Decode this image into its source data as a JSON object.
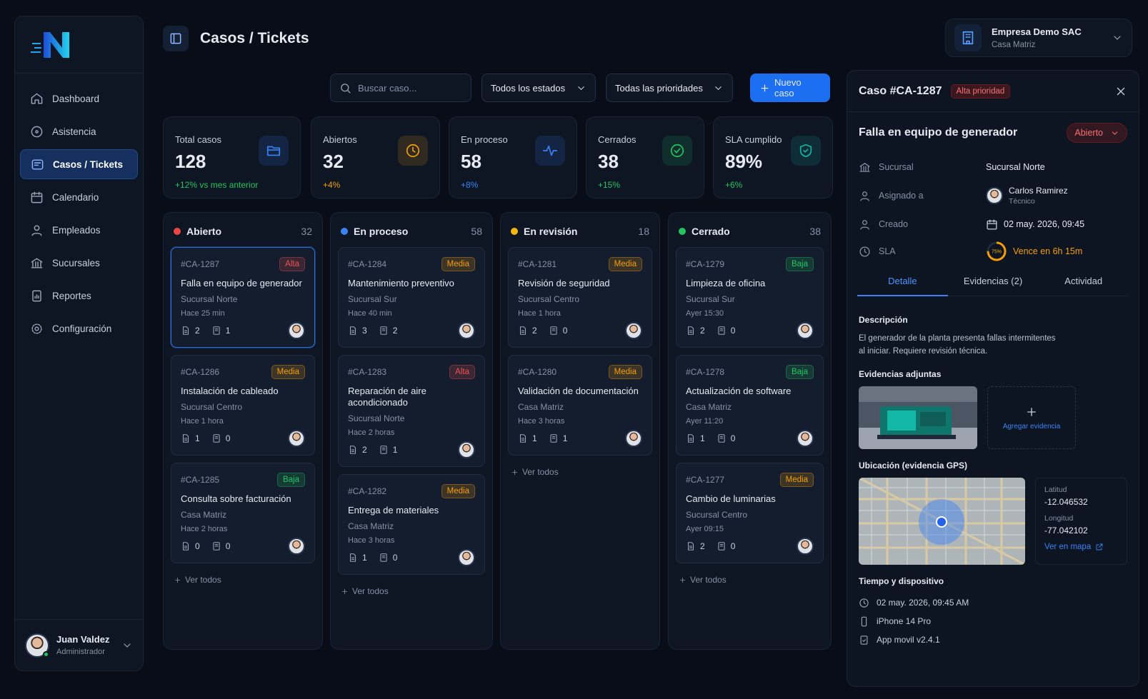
{
  "sidebar": {
    "nav": [
      {
        "label": "Dashboard"
      },
      {
        "label": "Asistencia"
      },
      {
        "label": "Casos / Tickets",
        "active": true
      },
      {
        "label": "Calendario"
      },
      {
        "label": "Empleados"
      },
      {
        "label": "Sucursales"
      },
      {
        "label": "Reportes"
      },
      {
        "label": "Configuración"
      }
    ],
    "user": {
      "name": "Juan Valdez",
      "role": "Administrador"
    }
  },
  "header": {
    "title": "Casos / Tickets",
    "company": "Empresa Demo SAC",
    "branch": "Casa Matriz"
  },
  "toolbar": {
    "search": "Buscar caso...",
    "status": "Todos los estados",
    "priority": "Todas las prioridades",
    "new": "Nuevo caso"
  },
  "stats": [
    {
      "label": "Total casos",
      "value": "128",
      "delta": "+12% vs mes anterior",
      "color": "#3b82f6",
      "delta_color": "#22c55e"
    },
    {
      "label": "Abiertos",
      "value": "32",
      "delta": "+4%",
      "color": "#f59e0b",
      "delta_color": "#f59e0b"
    },
    {
      "label": "En proceso",
      "value": "58",
      "delta": "+8%",
      "color": "#3b82f6",
      "delta_color": "#3b82f6"
    },
    {
      "label": "Cerrados",
      "value": "38",
      "delta": "+15%",
      "color": "#22c55e",
      "delta_color": "#22c55e"
    },
    {
      "label": "SLA cumplido",
      "value": "89%",
      "delta": "+6%",
      "color": "#14b8a6",
      "delta_color": "#22c55e"
    }
  ],
  "priority_colors": {
    "Alta": "#f05252",
    "Media": "#f59e0b",
    "Baja": "#22c55e"
  },
  "columns": [
    {
      "name": "Abierto",
      "count": "32",
      "color": "#ef4444",
      "more": "Ver todos",
      "cards": [
        {
          "id": "#CA-1287",
          "priority": "Alta",
          "title": "Falla en equipo de generador",
          "branch": "Sucursal Norte",
          "time": "Hace 25 min",
          "files": "2",
          "notes": "1",
          "selected": true
        },
        {
          "id": "#CA-1286",
          "priority": "Media",
          "title": "Instalación de cableado",
          "branch": "Sucursal Centro",
          "time": "Hace 1 hora",
          "files": "1",
          "notes": "0"
        },
        {
          "id": "#CA-1285",
          "priority": "Baja",
          "title": "Consulta sobre facturación",
          "branch": "Casa Matriz",
          "time": "Hace 2 horas",
          "files": "0",
          "notes": "0"
        }
      ]
    },
    {
      "name": "En proceso",
      "count": "58",
      "color": "#3b82f6",
      "more": "Ver todos",
      "cards": [
        {
          "id": "#CA-1284",
          "priority": "Media",
          "title": "Mantenimiento preventivo",
          "branch": "Sucursal Sur",
          "time": "Hace 40 min",
          "files": "3",
          "notes": "2"
        },
        {
          "id": "#CA-1283",
          "priority": "Alta",
          "title": "Reparación de aire acondicionado",
          "branch": "Sucursal Norte",
          "time": "Hace 2 horas",
          "files": "2",
          "notes": "1"
        },
        {
          "id": "#CA-1282",
          "priority": "Media",
          "title": "Entrega de materiales",
          "branch": "Casa Matriz",
          "time": "Hace 3 horas",
          "files": "1",
          "notes": "0"
        }
      ]
    },
    {
      "name": "En revisión",
      "count": "18",
      "color": "#f5b70b",
      "more": "Ver todos",
      "cards": [
        {
          "id": "#CA-1281",
          "priority": "Media",
          "title": "Revisión de seguridad",
          "branch": "Sucursal Centro",
          "time": "Hace 1 hora",
          "files": "2",
          "notes": "0"
        },
        {
          "id": "#CA-1280",
          "priority": "Media",
          "title": "Validación de documentación",
          "branch": "Casa Matriz",
          "time": "Hace 3 horas",
          "files": "1",
          "notes": "1"
        }
      ]
    },
    {
      "name": "Cerrado",
      "count": "38",
      "color": "#22c55e",
      "more": "Ver todos",
      "cards": [
        {
          "id": "#CA-1279",
          "priority": "Baja",
          "title": "Limpieza de oficina",
          "branch": "Sucursal Sur",
          "time": "Ayer 15:30",
          "files": "2",
          "notes": "0"
        },
        {
          "id": "#CA-1278",
          "priority": "Baja",
          "title": "Actualización de software",
          "branch": "Casa Matriz",
          "time": "Ayer 11:20",
          "files": "1",
          "notes": "0"
        },
        {
          "id": "#CA-1277",
          "priority": "Media",
          "title": "Cambio de luminarias",
          "branch": "Sucursal Centro",
          "time": "Ayer 09:15",
          "files": "2",
          "notes": "0"
        }
      ]
    }
  ],
  "detail": {
    "case": "Caso #CA-1287",
    "priority": "Alta prioridad",
    "title": "Falla en equipo de generador",
    "status": "Abierto",
    "fields": [
      {
        "label": "Sucursal",
        "value": "Sucursal Norte"
      },
      {
        "label": "Asignado a",
        "value": "Carlos Ramirez",
        "sub": "Técnico"
      },
      {
        "label": "Creado",
        "value": "02 may. 2026, 09:45"
      },
      {
        "label": "SLA",
        "value": "Vence en 6h 15m",
        "ring": {
          "value": 75,
          "label": "75%"
        }
      }
    ],
    "tabs": [
      {
        "label": "Detalle",
        "active": true
      },
      {
        "label": "Evidencias (2)"
      },
      {
        "label": "Actividad"
      }
    ],
    "description_title": "Descripción",
    "description": "El generador de la planta presenta fallas intermitentes al iniciar. Requiere revisión técnica.",
    "evidence_title": "Evidencias adjuntas",
    "add_evidence": "Agregar evidencia",
    "location_title": "Ubicación (evidencia GPS)",
    "lat_label": "Latitud",
    "lat": "-12.046532",
    "lon_label": "Longitud",
    "lon": "-77.042102",
    "map_link": "Ver en mapa",
    "device_title": "Tiempo y dispositivo",
    "device": [
      "02 may. 2026, 09:45 AM",
      "iPhone 14 Pro",
      "App movil v2.4.1"
    ]
  }
}
